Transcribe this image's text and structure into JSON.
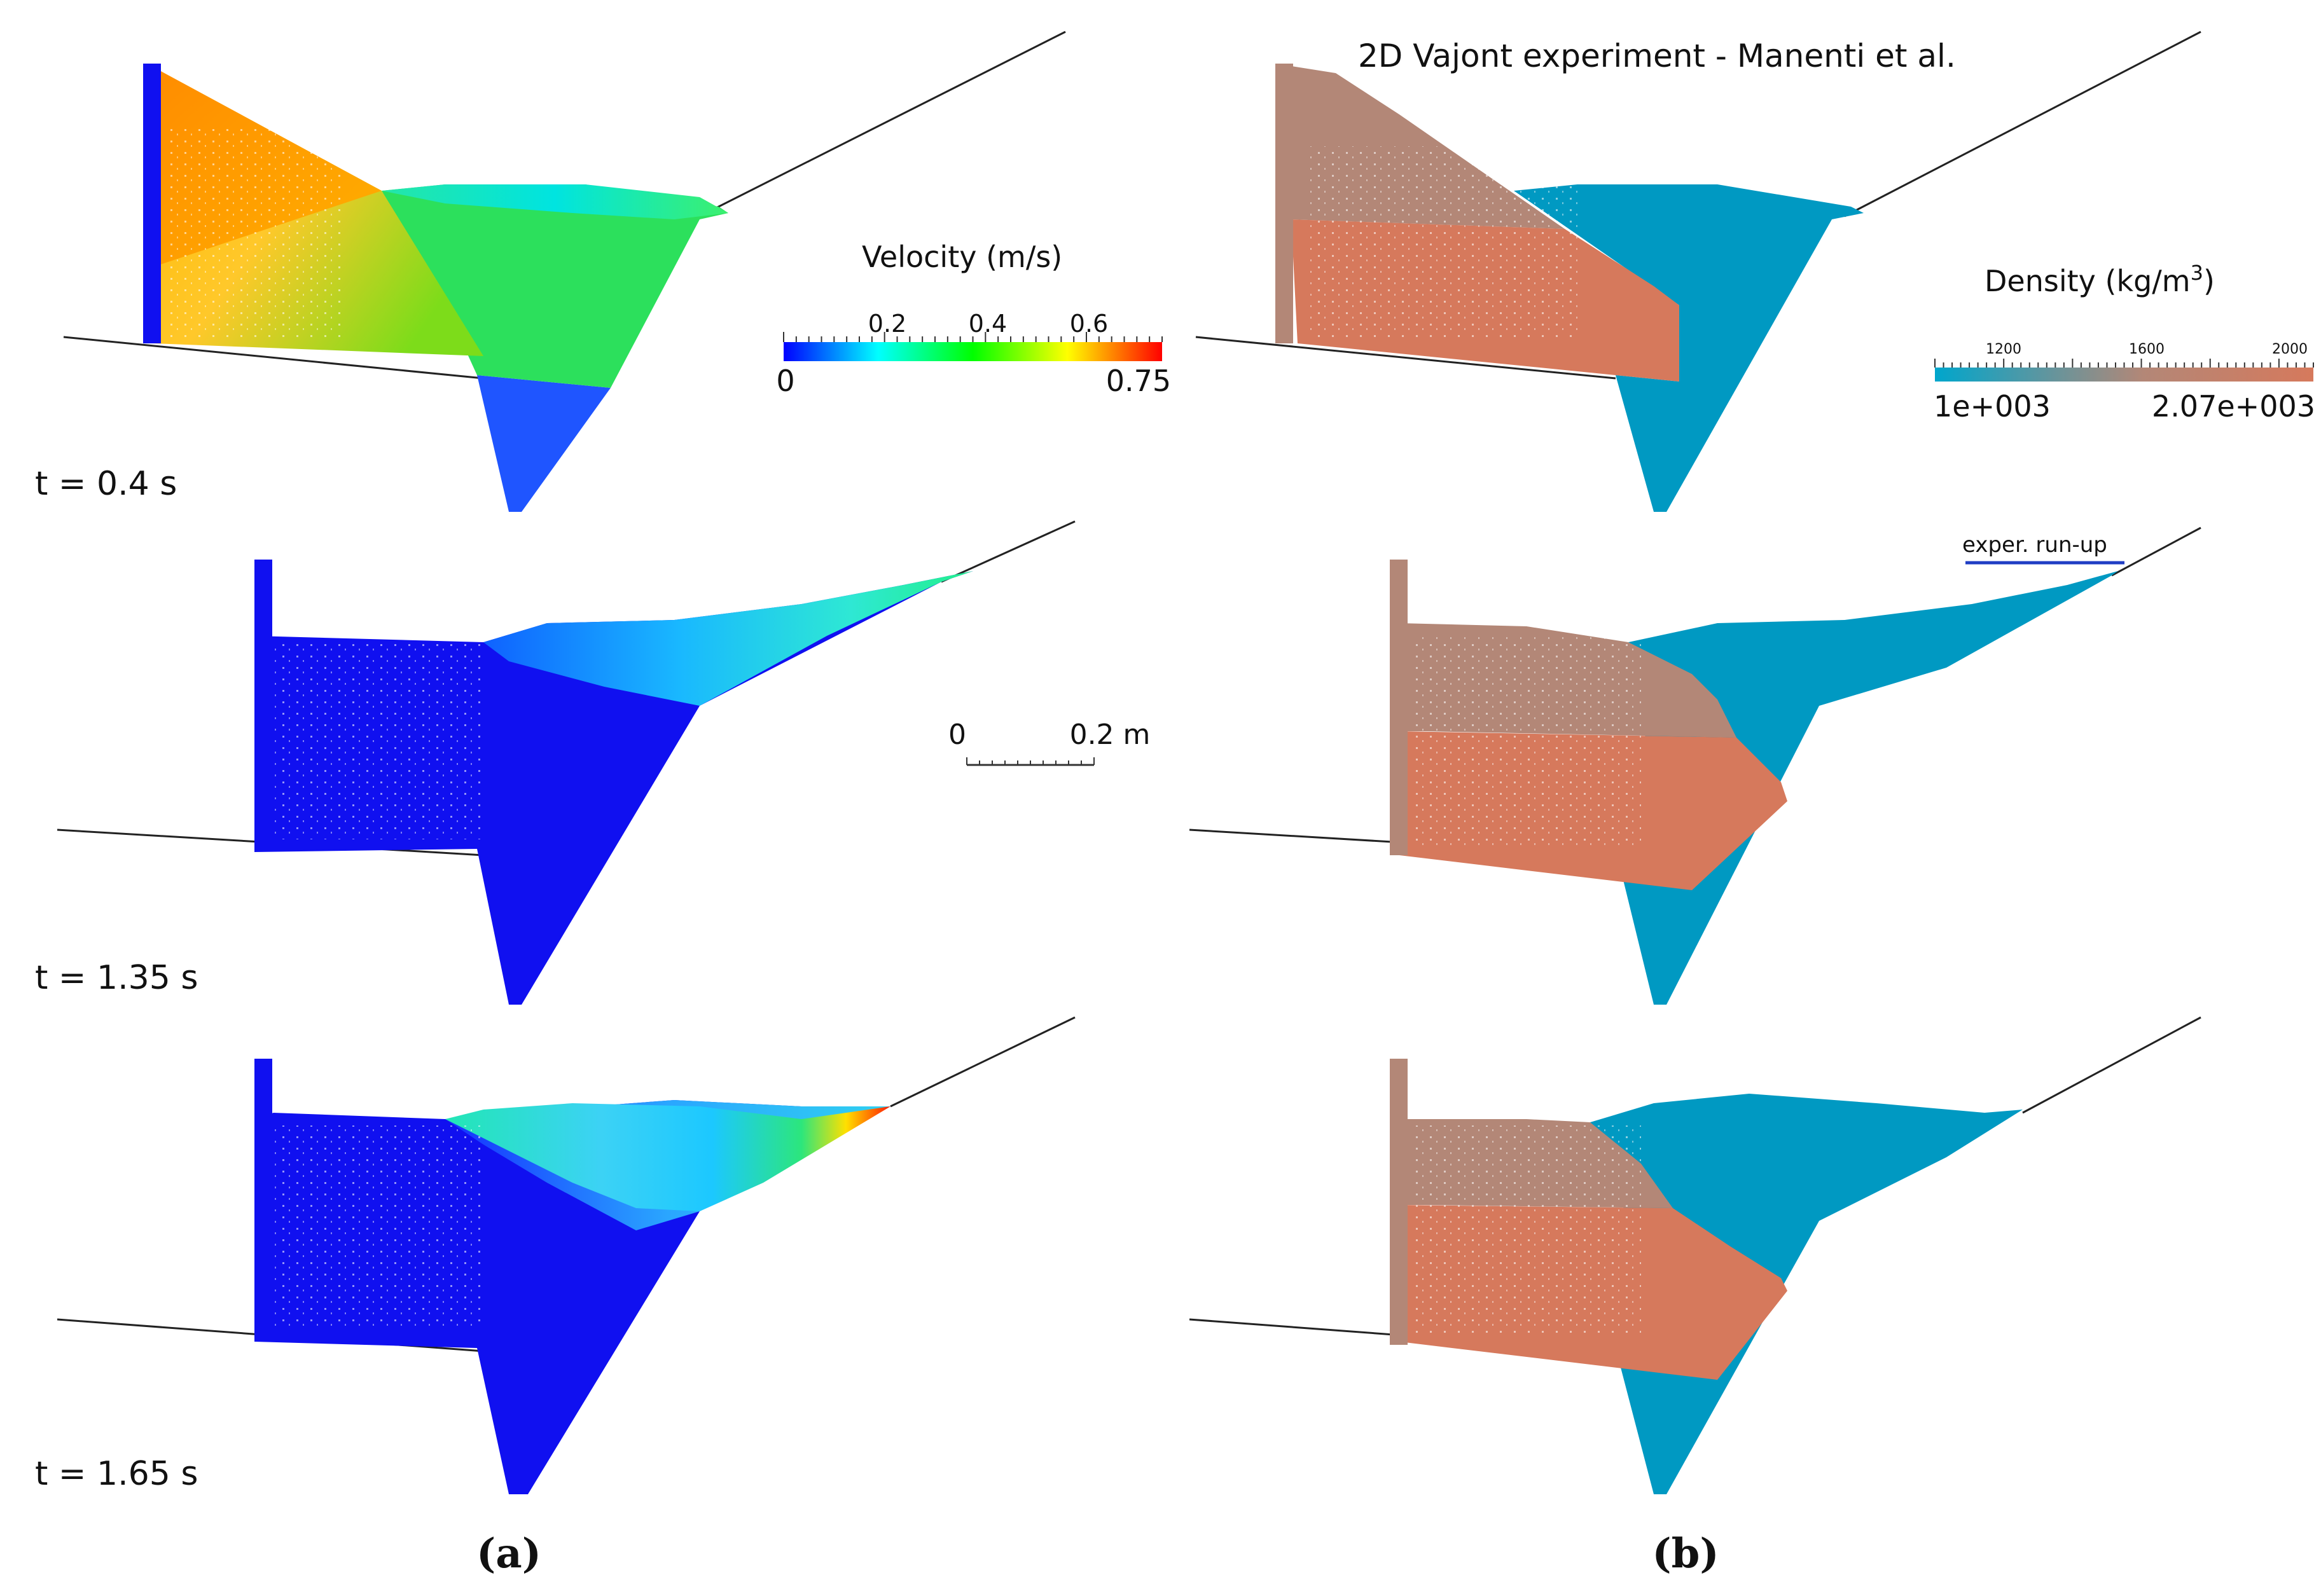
{
  "title": "2D Vajont experiment - Manenti et al.",
  "panels": {
    "a": {
      "label": "(a)"
    },
    "b": {
      "label": "(b)"
    }
  },
  "times": [
    "t = 0.4 s",
    "t = 1.35 s",
    "t = 1.65 s"
  ],
  "velocity_legend": {
    "title": "Velocity (m/s)",
    "min_label": "0",
    "max_label": "0.75",
    "tick_labels": [
      "0.2",
      "0.4",
      "0.6"
    ],
    "colors": [
      "#0000ff",
      "#00ffff",
      "#00ff00",
      "#ffff00",
      "#ff0000"
    ]
  },
  "density_legend": {
    "title_text": "Density (kg/m",
    "title_sup": "3",
    "title_close": ")",
    "min_label": "1e+003",
    "max_label": "2.07e+003",
    "tick_labels": [
      "1200",
      "1600",
      "2000"
    ],
    "colors": [
      "#00a6cc",
      "#b38777",
      "#d6795c"
    ]
  },
  "scale_bar": {
    "left_label": "0",
    "right_label": "0.2 m"
  },
  "annotation": {
    "text": "exper. run-up",
    "line_color": "#1f3dc4"
  },
  "colors": {
    "blue": "#1010f0",
    "water_teal": "#0099c2",
    "rock_light": "#b38777",
    "rock_dark": "#d6795c"
  }
}
